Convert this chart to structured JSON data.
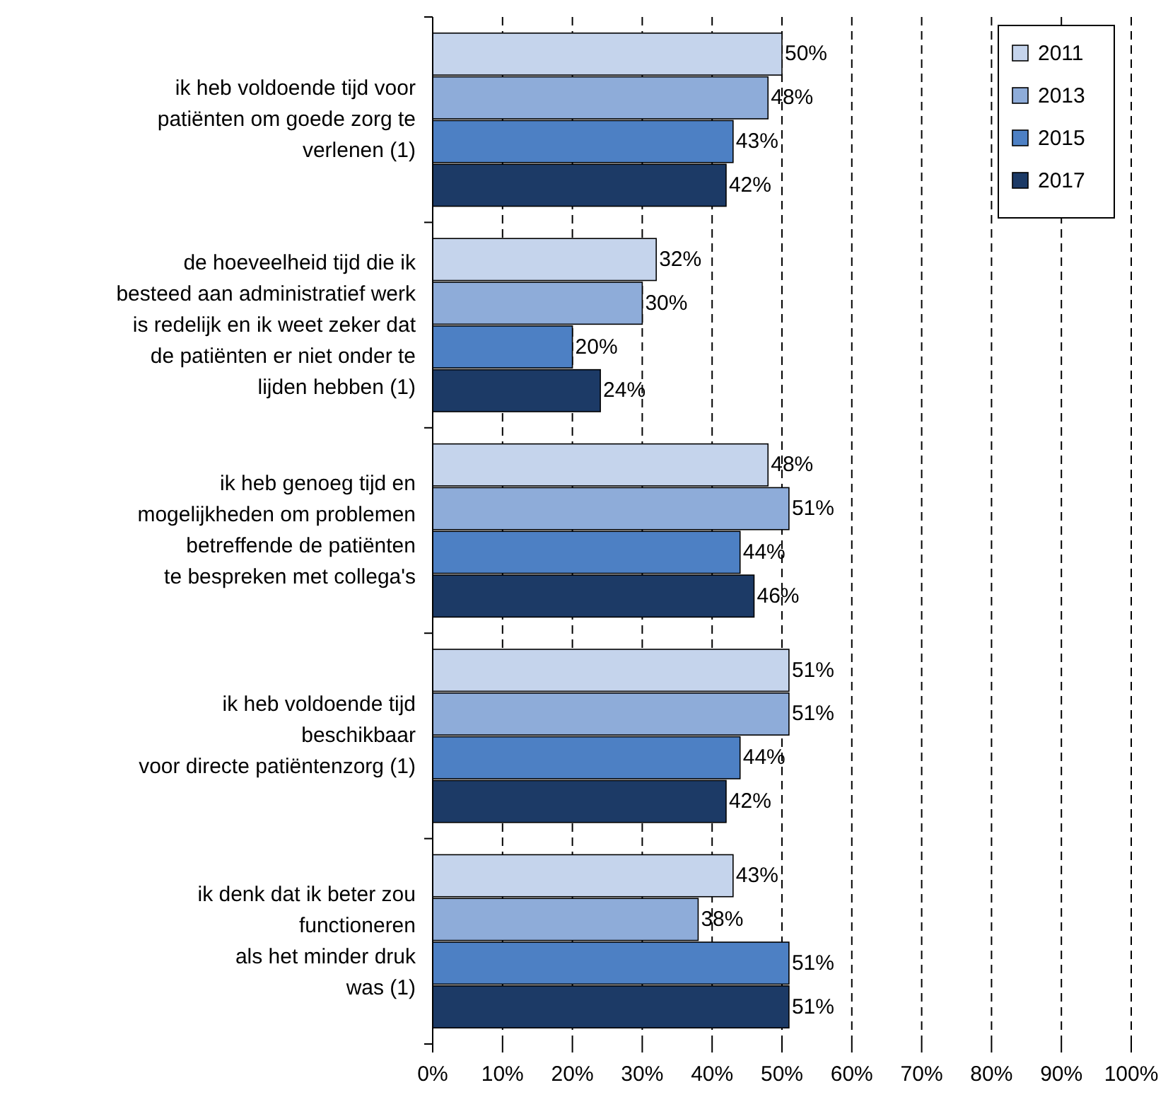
{
  "chart_data": {
    "type": "bar",
    "orientation": "horizontal",
    "categories": [
      "ik heb voldoende tijd voor\npatiënten om goede zorg te\nverlenen (1)",
      "de hoeveelheid tijd die ik\nbesteed aan administratief werk\nis redelijk en ik weet zeker dat\nde patiënten er niet onder te\nlijden hebben (1)",
      "ik heb genoeg tijd en\nmogelijkheden om problemen\nbetreffende de patiënten\nte bespreken met collega's",
      "ik heb voldoende tijd\nbeschikbaar\nvoor directe patiëntenzorg (1)",
      "ik denk dat ik beter zou\nfunctioneren\nals het minder druk\nwas (1)"
    ],
    "series": [
      {
        "name": "2011",
        "color": "#c5d4ec",
        "values": [
          50,
          32,
          48,
          51,
          43
        ],
        "value_labels": [
          "50%",
          "32%",
          "48%",
          "51%",
          "43%"
        ]
      },
      {
        "name": "2013",
        "color": "#8eacd9",
        "values": [
          48,
          30,
          51,
          51,
          38
        ],
        "value_labels": [
          "48%",
          "30%",
          "51%",
          "51%",
          "38%"
        ]
      },
      {
        "name": "2015",
        "color": "#4d80c4",
        "values": [
          43,
          20,
          44,
          44,
          51
        ],
        "value_labels": [
          "43%",
          "20%",
          "44%",
          "44%",
          "51%"
        ]
      },
      {
        "name": "2017",
        "color": "#1c3a66",
        "values": [
          42,
          24,
          46,
          42,
          51
        ],
        "value_labels": [
          "42%",
          "24%",
          "46%",
          "42%",
          "51%"
        ]
      }
    ],
    "xlim": [
      0,
      100
    ],
    "xticks": [
      {
        "value": 0,
        "label": "0%"
      },
      {
        "value": 10,
        "label": "10%"
      },
      {
        "value": 20,
        "label": "20%"
      },
      {
        "value": 30,
        "label": "30%"
      },
      {
        "value": 40,
        "label": "40%"
      },
      {
        "value": 50,
        "label": "50%"
      },
      {
        "value": 60,
        "label": "60%"
      },
      {
        "value": 70,
        "label": "70%"
      },
      {
        "value": 80,
        "label": "80%"
      },
      {
        "value": 90,
        "label": "90%"
      },
      {
        "value": 100,
        "label": "100%"
      }
    ],
    "grid": "x",
    "legend": "top right"
  }
}
